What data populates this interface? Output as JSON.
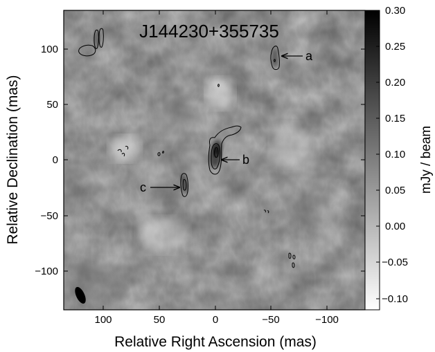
{
  "image": {
    "title": "J144230+355735",
    "xlabel": "Relative Right Ascension (mas)",
    "ylabel": "Relative Declination (mas)",
    "x_ticks": [
      "100",
      "50",
      "0",
      "−50",
      "−100"
    ],
    "y_ticks": [
      "100",
      "50",
      "0",
      "−50",
      "−100"
    ],
    "x_range_mas": [
      135,
      -135
    ],
    "y_range_mas": [
      -135,
      135
    ],
    "x_axis_reversed": true,
    "background": "grayscale residual noise map",
    "contour_color": "#000000"
  },
  "colorbar": {
    "label": "mJy / beam",
    "ticks": [
      "0.30",
      "0.25",
      "0.20",
      "0.15",
      "0.10",
      "0.05",
      "0.00",
      "−0.05",
      "−0.10"
    ],
    "range": [
      -0.115,
      0.3
    ],
    "colors": {
      "low": "#ffffff",
      "high": "#000000"
    }
  },
  "components": [
    {
      "label": "a",
      "ra_mas": -53,
      "dec_mas": 92
    },
    {
      "label": "b",
      "ra_mas": 0,
      "dec_mas": 5
    },
    {
      "label": "c",
      "ra_mas": 27,
      "dec_mas": -23
    }
  ],
  "beam": {
    "ra_mas": 122,
    "dec_mas": -122
  }
}
